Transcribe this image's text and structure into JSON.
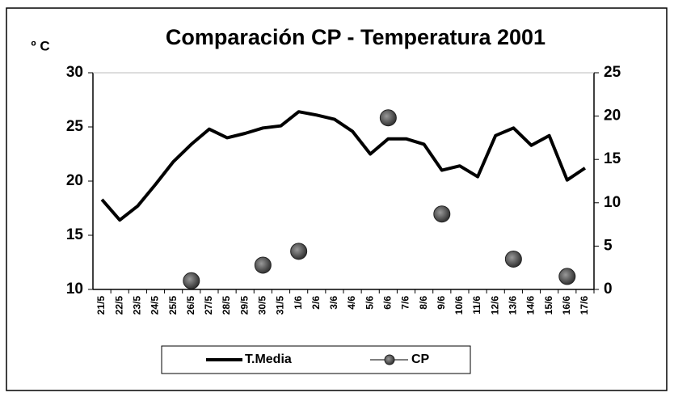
{
  "chart_data": {
    "type": "line",
    "title": "Comparación CP - Temperatura 2001",
    "y_label": "º C",
    "categories": [
      "21/5",
      "22/5",
      "23/5",
      "24/5",
      "25/5",
      "26/5",
      "27/5",
      "28/5",
      "29/5",
      "30/5",
      "31/5",
      "1/6",
      "2/6",
      "3/6",
      "4/6",
      "5/6",
      "6/6",
      "7/6",
      "8/6",
      "9/6",
      "10/6",
      "11/6",
      "12/6",
      "13/6",
      "14/6",
      "15/6",
      "16/6",
      "17/6"
    ],
    "series": [
      {
        "name": "T.Media",
        "color": "#000000",
        "values": [
          18.3,
          16.4,
          17.7,
          19.7,
          21.8,
          23.4,
          24.8,
          24.0,
          24.4,
          24.9,
          25.1,
          26.4,
          26.1,
          25.7,
          24.6,
          22.5,
          23.9,
          23.9,
          23.4,
          21.0,
          21.4,
          20.4,
          24.2,
          24.9,
          23.3,
          24.2,
          20.1,
          21.2
        ]
      },
      {
        "name": "CP",
        "color": "#555555",
        "axis": "y2",
        "values": [
          null,
          null,
          null,
          null,
          null,
          1.0,
          null,
          null,
          null,
          2.8,
          null,
          4.4,
          null,
          null,
          null,
          null,
          19.8,
          null,
          null,
          8.7,
          null,
          null,
          null,
          3.5,
          null,
          null,
          1.5,
          null
        ]
      }
    ],
    "ylim": [
      10,
      30
    ],
    "yticks": [
      10,
      15,
      20,
      25,
      30
    ],
    "y2lim": [
      0,
      25
    ],
    "y2ticks": [
      0,
      5,
      10,
      15,
      20,
      25
    ],
    "legend": "bottom"
  }
}
